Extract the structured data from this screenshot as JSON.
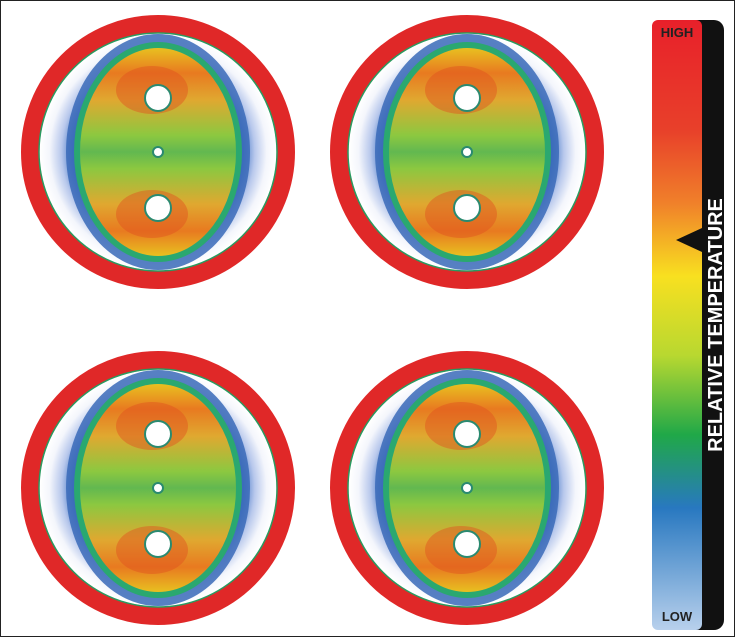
{
  "color_scale": {
    "high": "HIGH",
    "low": "LOW",
    "title": "RELATIVE TEMPERATURE"
  }
}
